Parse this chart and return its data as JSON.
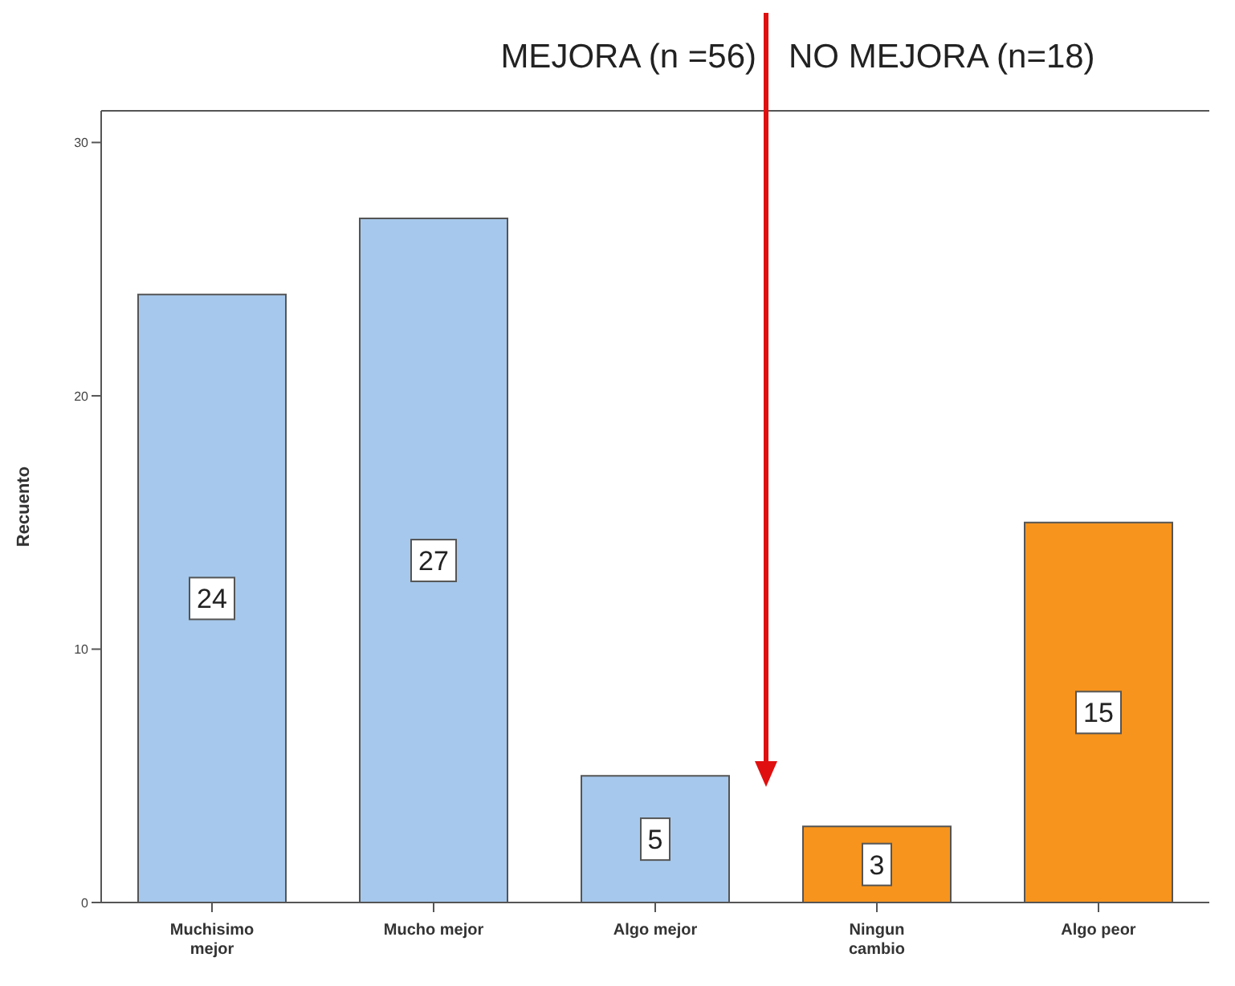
{
  "chart_data": {
    "type": "bar",
    "ylabel": "Recuento",
    "categories": [
      "Muchisimo mejor",
      "Mucho mejor",
      "Algo mejor",
      "Ningun cambio",
      "Algo peor"
    ],
    "values": [
      24,
      27,
      5,
      3,
      15
    ],
    "colors": [
      "#a6c8ec",
      "#a6c8ec",
      "#a6c8ec",
      "#f7941d",
      "#f7941d"
    ],
    "ylim": [
      0,
      31.25
    ],
    "yticks": [
      0,
      10,
      20,
      30
    ],
    "grid": false,
    "data_labels": true,
    "legend": false,
    "annotations": [
      "MEJORA (n =56)",
      "NO MEJORA (n=18)"
    ]
  }
}
